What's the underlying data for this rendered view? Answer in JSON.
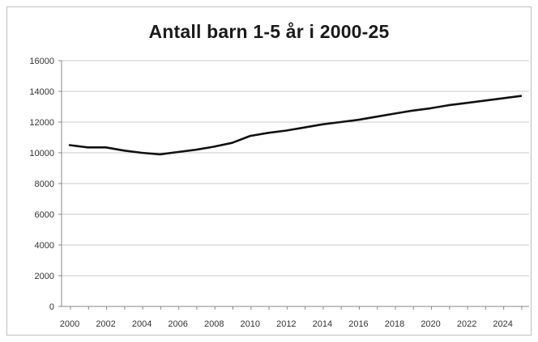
{
  "chart_data": {
    "type": "line",
    "title": "Antall barn 1-5 år i 2000-25",
    "xlabel": "",
    "ylabel": "",
    "x": [
      2000,
      2001,
      2002,
      2003,
      2004,
      2005,
      2006,
      2007,
      2008,
      2009,
      2010,
      2011,
      2012,
      2013,
      2014,
      2015,
      2016,
      2017,
      2018,
      2019,
      2020,
      2021,
      2022,
      2023,
      2024,
      2025
    ],
    "series": [
      {
        "values": [
          10500,
          10350,
          10350,
          10150,
          10000,
          9900,
          10050,
          10200,
          10400,
          10650,
          11100,
          11300,
          11450,
          11650,
          11850,
          12000,
          12150,
          12350,
          12550,
          12750,
          12900,
          13100,
          13250,
          13400,
          13550,
          13700
        ],
        "color": "#111111"
      }
    ],
    "ylim": [
      0,
      16000
    ],
    "yticks": [
      "0",
      "2000",
      "4000",
      "6000",
      "8000",
      "10000",
      "12000",
      "14000",
      "16000"
    ],
    "xticks": [
      "2000",
      "2002",
      "2004",
      "2006",
      "2008",
      "2010",
      "2012",
      "2014",
      "2016",
      "2018",
      "2020",
      "2022",
      "2024"
    ],
    "grid": true,
    "legend": "none"
  }
}
